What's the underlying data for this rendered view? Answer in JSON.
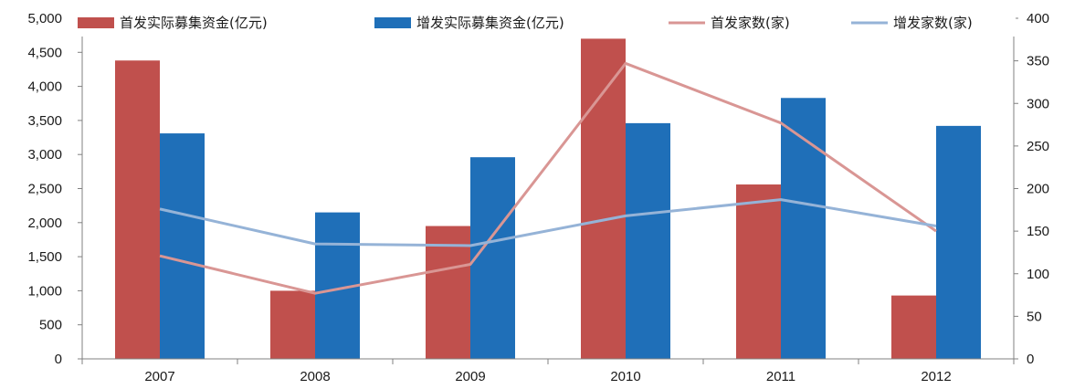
{
  "chart_data": {
    "type": "bar",
    "categories": [
      "2007",
      "2008",
      "2009",
      "2010",
      "2011",
      "2012"
    ],
    "series": [
      {
        "name": "首发实际募集资金(亿元)",
        "kind": "bar",
        "axis": "left",
        "color": "#C0504D",
        "values": [
          4380,
          1000,
          1950,
          4700,
          2560,
          930
        ]
      },
      {
        "name": "增发实际募集资金(亿元)",
        "kind": "bar",
        "axis": "left",
        "color": "#1F6FB8",
        "values": [
          3310,
          2150,
          2960,
          3460,
          3830,
          3420
        ]
      },
      {
        "name": "首发家数(家)",
        "kind": "line",
        "axis": "right",
        "color": "#D99694",
        "values": [
          121,
          77,
          111,
          347,
          277,
          150
        ]
      },
      {
        "name": "增发家数(家)",
        "kind": "line",
        "axis": "right",
        "color": "#95B3D7",
        "values": [
          176,
          135,
          133,
          168,
          187,
          156
        ]
      }
    ],
    "y_left": {
      "min": 0,
      "max": 5000,
      "step": 500,
      "tick_labels": [
        "0",
        "500",
        "1,000",
        "1,500",
        "2,000",
        "2,500",
        "3,000",
        "3,500",
        "4,000",
        "4,500",
        "5,000"
      ]
    },
    "y_right": {
      "min": 0,
      "max": 400,
      "step": 50,
      "tick_labels": [
        "0",
        "50",
        "100",
        "150",
        "200",
        "250",
        "300",
        "350",
        "400"
      ]
    },
    "legend_position": "top",
    "grid": false
  }
}
